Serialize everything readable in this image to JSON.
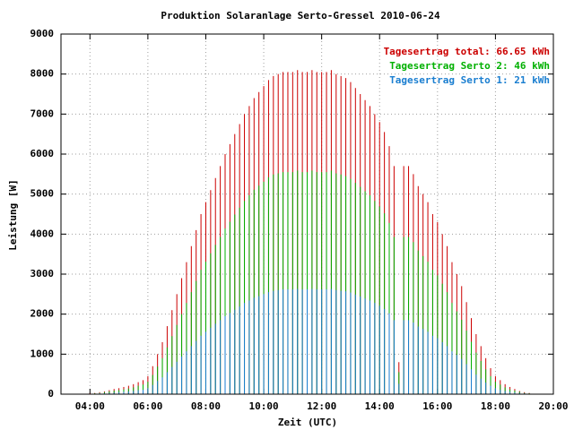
{
  "chart_data": {
    "type": "impulse",
    "title": "Produktion Solaranlage Serto-Gressel 2010-06-24",
    "xlabel": "Zeit (UTC)",
    "ylabel": "Leistung [W]",
    "x": [
      240,
      250,
      260,
      270,
      280,
      290,
      300,
      310,
      320,
      330,
      340,
      350,
      360,
      370,
      380,
      390,
      400,
      410,
      420,
      430,
      440,
      450,
      460,
      470,
      480,
      490,
      500,
      510,
      520,
      530,
      540,
      550,
      560,
      570,
      580,
      590,
      600,
      610,
      620,
      630,
      640,
      650,
      660,
      670,
      680,
      690,
      700,
      710,
      720,
      730,
      740,
      750,
      760,
      770,
      780,
      790,
      800,
      810,
      820,
      830,
      840,
      850,
      860,
      870,
      880,
      890,
      900,
      910,
      920,
      930,
      940,
      950,
      960,
      970,
      980,
      990,
      1000,
      1010,
      1020,
      1030,
      1040,
      1050,
      1060,
      1070,
      1080,
      1090,
      1100,
      1110,
      1120,
      1130,
      1140,
      1150,
      1160
    ],
    "series": [
      {
        "name": "Tagesertrag total: 66.65 kWh",
        "color": "#cc0000",
        "values": [
          20,
          30,
          50,
          70,
          100,
          130,
          150,
          180,
          210,
          250,
          300,
          350,
          450,
          700,
          1000,
          1300,
          1700,
          2100,
          2500,
          2900,
          3300,
          3700,
          4100,
          4500,
          4800,
          5100,
          5400,
          5700,
          6000,
          6250,
          6500,
          6750,
          7000,
          7200,
          7400,
          7550,
          7700,
          7850,
          7950,
          8000,
          8050,
          8050,
          8050,
          8100,
          8050,
          8050,
          8100,
          8050,
          8050,
          8050,
          8100,
          8000,
          7950,
          7900,
          7800,
          7650,
          7500,
          7350,
          7200,
          7000,
          6800,
          6550,
          6200,
          5700,
          800,
          5700,
          5700,
          5500,
          5200,
          5000,
          4800,
          4500,
          4300,
          4000,
          3700,
          3300,
          3000,
          2700,
          2300,
          1900,
          1500,
          1200,
          900,
          650,
          450,
          350,
          250,
          180,
          130,
          80,
          50,
          30,
          10
        ]
      },
      {
        "name": "Tagesertrag Serto 2: 46 kWh",
        "color": "#00b000",
        "values": [
          10,
          20,
          30,
          50,
          70,
          90,
          100,
          120,
          140,
          170,
          210,
          240,
          310,
          480,
          690,
          900,
          1170,
          1450,
          1730,
          2000,
          2280,
          2550,
          2830,
          3110,
          3310,
          3520,
          3730,
          3930,
          4140,
          4310,
          4490,
          4660,
          4830,
          4970,
          5110,
          5210,
          5310,
          5420,
          5490,
          5520,
          5550,
          5550,
          5550,
          5590,
          5550,
          5550,
          5590,
          5550,
          5550,
          5550,
          5590,
          5520,
          5490,
          5450,
          5380,
          5280,
          5180,
          5070,
          4970,
          4830,
          4690,
          4520,
          4280,
          3930,
          550,
          3930,
          3930,
          3800,
          3590,
          3450,
          3310,
          3110,
          2970,
          2760,
          2550,
          2280,
          2070,
          1860,
          1590,
          1310,
          1040,
          830,
          620,
          450,
          310,
          240,
          170,
          120,
          90,
          60,
          30,
          20,
          10
        ]
      },
      {
        "name": "Tagesertrag Serto 1: 21 kWh",
        "color": "#1a7ed0",
        "values": [
          10,
          10,
          20,
          20,
          30,
          40,
          50,
          60,
          70,
          80,
          100,
          110,
          150,
          230,
          330,
          420,
          550,
          680,
          810,
          940,
          1070,
          1200,
          1330,
          1460,
          1560,
          1660,
          1760,
          1850,
          1950,
          2030,
          2110,
          2190,
          2280,
          2340,
          2410,
          2450,
          2500,
          2550,
          2580,
          2600,
          2620,
          2620,
          2620,
          2630,
          2620,
          2620,
          2630,
          2620,
          2620,
          2620,
          2630,
          2600,
          2580,
          2570,
          2540,
          2490,
          2440,
          2390,
          2340,
          2280,
          2210,
          2130,
          2020,
          1850,
          260,
          1850,
          1850,
          1790,
          1690,
          1630,
          1560,
          1460,
          1400,
          1300,
          1200,
          1070,
          980,
          880,
          750,
          620,
          490,
          390,
          290,
          210,
          150,
          110,
          80,
          60,
          40,
          30,
          20,
          10,
          0
        ]
      }
    ],
    "xlim": [
      180,
      1200
    ],
    "xticks": [
      {
        "value": 240,
        "label": "04:00"
      },
      {
        "value": 360,
        "label": "06:00"
      },
      {
        "value": 480,
        "label": "08:00"
      },
      {
        "value": 600,
        "label": "10:00"
      },
      {
        "value": 720,
        "label": "12:00"
      },
      {
        "value": 840,
        "label": "14:00"
      },
      {
        "value": 960,
        "label": "16:00"
      },
      {
        "value": 1080,
        "label": "18:00"
      },
      {
        "value": 1200,
        "label": "20:00"
      }
    ],
    "ylim": [
      0,
      9000
    ],
    "yticks": [
      0,
      1000,
      2000,
      3000,
      4000,
      5000,
      6000,
      7000,
      8000,
      9000
    ],
    "grid": true,
    "legend": "top-right"
  }
}
